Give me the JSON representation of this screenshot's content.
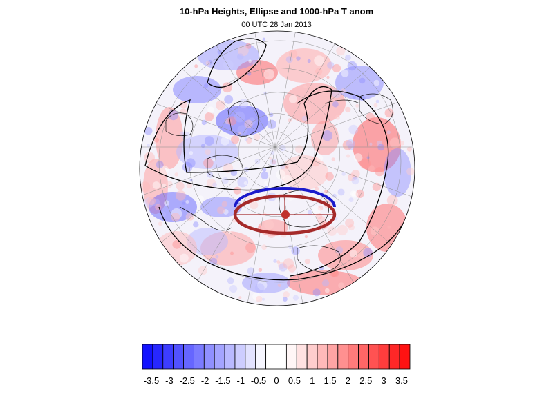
{
  "title": "10-hPa Heights, Ellipse and 1000-hPa T anom",
  "subtitle": "00 UTC 28 Jan 2013",
  "colorbar": {
    "labels": [
      "-3.5",
      "-3",
      "-2.5",
      "-2",
      "-1.5",
      "-1",
      "-0.5",
      "0",
      "0.5",
      "1",
      "1.5",
      "2",
      "2.5",
      "3",
      "3.5"
    ],
    "colors": [
      "#1212ff",
      "#2727ff",
      "#3d3dff",
      "#5252ff",
      "#6666ff",
      "#7b7bff",
      "#9090ff",
      "#a4a4ff",
      "#b9b9ff",
      "#cdcdff",
      "#e2e2ff",
      "#f6f6ff",
      "#ffffff",
      "#ffffff",
      "#fff6f6",
      "#ffe2e2",
      "#ffcdcd",
      "#ffb9b9",
      "#ffa4a4",
      "#ff9090",
      "#ff7b7b",
      "#ff6666",
      "#ff5252",
      "#ff3d3d",
      "#ff2727",
      "#ff1212"
    ]
  },
  "map": {
    "projection": "polar-stereographic-north",
    "ellipse_color": "#a52a2a",
    "ellipse_outline_color": "#1a1acc",
    "center_marker_color": "#c0302c",
    "contour_color": "#000000"
  }
}
